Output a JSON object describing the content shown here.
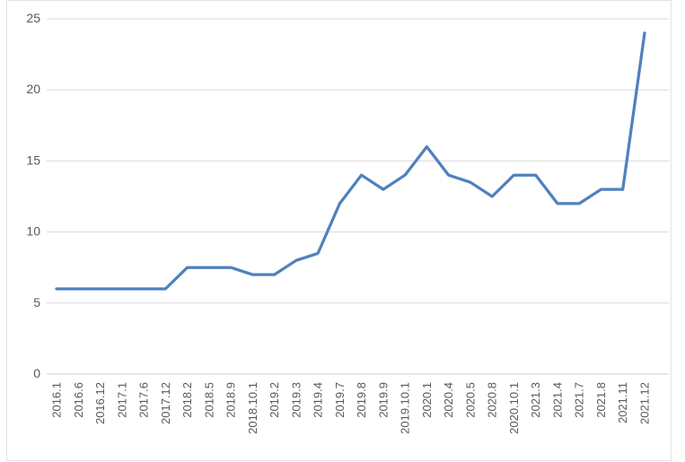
{
  "chart_data": {
    "type": "line",
    "title": "",
    "xlabel": "",
    "ylabel": "",
    "categories": [
      "2016.1",
      "2016.6",
      "2016.12",
      "2017.1",
      "2017.6",
      "2017.12",
      "2018.2",
      "2018.5",
      "2018.9",
      "2018.10.1",
      "2019.2",
      "2019.3",
      "2019.4",
      "2019.7",
      "2019.8",
      "2019.9",
      "2019.10.1",
      "2020.1",
      "2020.4",
      "2020.5",
      "2020.8",
      "2020.10.1",
      "2021.3",
      "2021.4",
      "2021.7",
      "2021.8",
      "2021.11",
      "2021.12"
    ],
    "series": [
      {
        "values": [
          6,
          6,
          6,
          6,
          6,
          6,
          7.5,
          7.5,
          7.5,
          7,
          7,
          8,
          8.5,
          12,
          14,
          13,
          14,
          16,
          14,
          13.5,
          12.5,
          14,
          14,
          12,
          12,
          13,
          13,
          24
        ]
      }
    ],
    "ylim": [
      0,
      25
    ],
    "yticks": [
      0,
      5,
      10,
      15,
      20,
      25
    ],
    "grid": true,
    "legend_position": "none",
    "x_tick_rotation_degrees": 90,
    "colors": {
      "line": "#4f81bd",
      "grid": "#d9d9d9",
      "axis_line": "#d0d0d0",
      "tick_label": "#595959",
      "frame_border": "#e3e3e3",
      "background": "#ffffff"
    }
  }
}
